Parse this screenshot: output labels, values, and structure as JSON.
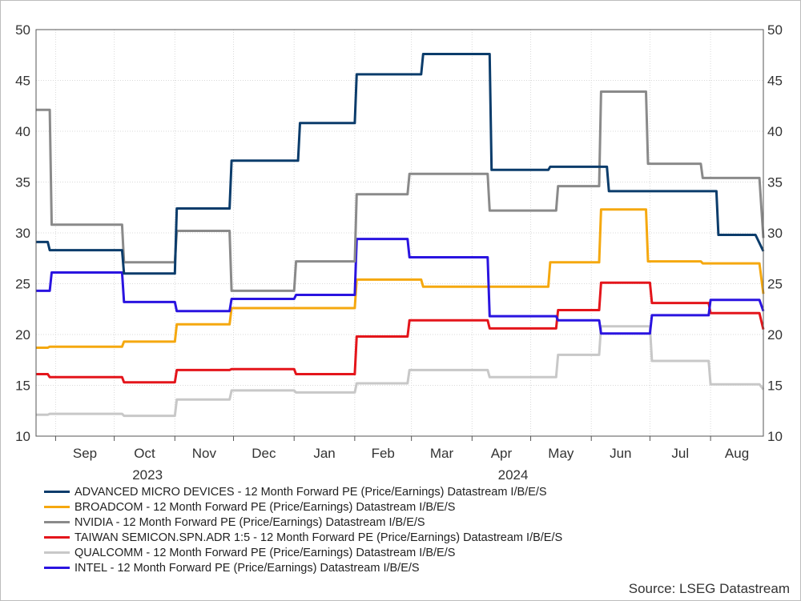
{
  "chart_data": {
    "type": "line",
    "ylim": [
      10,
      50
    ],
    "yticks": [
      10,
      15,
      20,
      25,
      30,
      35,
      40,
      45,
      50
    ],
    "x_month_labels": [
      "Sep",
      "Oct",
      "Nov",
      "Dec",
      "Jan",
      "Feb",
      "Mar",
      "Apr",
      "May",
      "Jun",
      "Jul",
      "Aug"
    ],
    "x_year_labels": [
      "2023",
      "2024"
    ],
    "grid": true,
    "legend_position": "bottom",
    "x_range": [
      "2023-08-22",
      "2024-08-28"
    ],
    "series": [
      {
        "name": "ADVANCED MICRO DEVICES - 12 Month Forward PE (Price/Earnings) Datastream I/B/E/S",
        "color": "#0b3c6b",
        "points": [
          [
            "2023-08-22",
            29.1
          ],
          [
            "2023-08-28",
            29.1
          ],
          [
            "2023-08-29",
            28.3
          ],
          [
            "2023-10-05",
            28.3
          ],
          [
            "2023-10-06",
            26.0
          ],
          [
            "2023-11-01",
            26.0
          ],
          [
            "2023-11-02",
            32.4
          ],
          [
            "2023-11-29",
            32.4
          ],
          [
            "2023-11-30",
            37.1
          ],
          [
            "2024-01-03",
            37.1
          ],
          [
            "2024-01-04",
            40.8
          ],
          [
            "2024-02-01",
            40.8
          ],
          [
            "2024-02-02",
            45.6
          ],
          [
            "2024-03-06",
            45.6
          ],
          [
            "2024-03-07",
            47.6
          ],
          [
            "2024-04-10",
            47.6
          ],
          [
            "2024-04-11",
            36.2
          ],
          [
            "2024-05-10",
            36.2
          ],
          [
            "2024-05-11",
            36.5
          ],
          [
            "2024-06-09",
            36.5
          ],
          [
            "2024-06-10",
            34.1
          ],
          [
            "2024-08-04",
            34.1
          ],
          [
            "2024-08-05",
            29.8
          ],
          [
            "2024-08-24",
            29.8
          ],
          [
            "2024-08-28",
            28.2
          ]
        ]
      },
      {
        "name": "BROADCOM - 12 Month Forward PE (Price/Earnings) Datastream I/B/E/S",
        "color": "#f5a80f",
        "points": [
          [
            "2023-08-22",
            18.7
          ],
          [
            "2023-08-28",
            18.7
          ],
          [
            "2023-08-29",
            18.8
          ],
          [
            "2023-10-05",
            18.8
          ],
          [
            "2023-10-06",
            19.3
          ],
          [
            "2023-11-01",
            19.3
          ],
          [
            "2023-11-02",
            21.0
          ],
          [
            "2023-11-29",
            21.0
          ],
          [
            "2023-11-30",
            22.6
          ],
          [
            "2024-02-01",
            22.6
          ],
          [
            "2024-02-02",
            25.4
          ],
          [
            "2024-03-06",
            25.4
          ],
          [
            "2024-03-07",
            24.7
          ],
          [
            "2024-05-10",
            24.7
          ],
          [
            "2024-05-11",
            27.1
          ],
          [
            "2024-06-05",
            27.1
          ],
          [
            "2024-06-06",
            32.3
          ],
          [
            "2024-06-29",
            32.3
          ],
          [
            "2024-06-30",
            27.2
          ],
          [
            "2024-07-27",
            27.2
          ],
          [
            "2024-07-28",
            27.0
          ],
          [
            "2024-08-26",
            27.0
          ],
          [
            "2024-08-28",
            24.0
          ]
        ]
      },
      {
        "name": "NVIDIA - 12 Month Forward PE (Price/Earnings) Datastream I/B/E/S",
        "color": "#8a8a8a",
        "points": [
          [
            "2023-08-22",
            42.1
          ],
          [
            "2023-08-29",
            42.1
          ],
          [
            "2023-08-30",
            30.8
          ],
          [
            "2023-10-05",
            30.8
          ],
          [
            "2023-10-06",
            27.1
          ],
          [
            "2023-11-01",
            27.1
          ],
          [
            "2023-11-02",
            30.2
          ],
          [
            "2023-11-29",
            30.2
          ],
          [
            "2023-11-30",
            24.3
          ],
          [
            "2024-01-01",
            24.3
          ],
          [
            "2024-01-02",
            27.2
          ],
          [
            "2024-02-01",
            27.2
          ],
          [
            "2024-02-02",
            33.8
          ],
          [
            "2024-02-28",
            33.8
          ],
          [
            "2024-02-29",
            35.8
          ],
          [
            "2024-04-09",
            35.8
          ],
          [
            "2024-04-10",
            32.2
          ],
          [
            "2024-05-14",
            32.2
          ],
          [
            "2024-05-15",
            34.6
          ],
          [
            "2024-06-05",
            34.6
          ],
          [
            "2024-06-06",
            43.9
          ],
          [
            "2024-06-29",
            43.9
          ],
          [
            "2024-06-30",
            36.8
          ],
          [
            "2024-07-27",
            36.8
          ],
          [
            "2024-07-28",
            35.4
          ],
          [
            "2024-08-26",
            35.4
          ],
          [
            "2024-08-28",
            29.5
          ]
        ]
      },
      {
        "name": "TAIWAN SEMICON.SPN.ADR 1:5 - 12 Month Forward PE (Price/Earnings) Datastream I/B/E/S",
        "color": "#e4151b",
        "points": [
          [
            "2023-08-22",
            16.1
          ],
          [
            "2023-08-28",
            16.1
          ],
          [
            "2023-08-29",
            15.8
          ],
          [
            "2023-10-05",
            15.8
          ],
          [
            "2023-10-06",
            15.3
          ],
          [
            "2023-11-01",
            15.3
          ],
          [
            "2023-11-02",
            16.5
          ],
          [
            "2023-11-29",
            16.5
          ],
          [
            "2023-11-30",
            16.6
          ],
          [
            "2024-01-01",
            16.6
          ],
          [
            "2024-01-02",
            16.1
          ],
          [
            "2024-02-01",
            16.1
          ],
          [
            "2024-02-02",
            19.8
          ],
          [
            "2024-02-28",
            19.8
          ],
          [
            "2024-02-29",
            21.4
          ],
          [
            "2024-04-09",
            21.4
          ],
          [
            "2024-04-10",
            20.6
          ],
          [
            "2024-05-14",
            20.6
          ],
          [
            "2024-05-15",
            22.4
          ],
          [
            "2024-06-05",
            22.4
          ],
          [
            "2024-06-06",
            25.1
          ],
          [
            "2024-07-01",
            25.1
          ],
          [
            "2024-07-02",
            23.1
          ],
          [
            "2024-07-31",
            23.1
          ],
          [
            "2024-08-01",
            22.1
          ],
          [
            "2024-08-26",
            22.1
          ],
          [
            "2024-08-28",
            20.5
          ]
        ]
      },
      {
        "name": "QUALCOMM - 12 Month Forward PE (Price/Earnings) Datastream I/B/E/S",
        "color": "#c8c8c8",
        "points": [
          [
            "2023-08-22",
            12.1
          ],
          [
            "2023-08-28",
            12.1
          ],
          [
            "2023-08-29",
            12.2
          ],
          [
            "2023-10-05",
            12.2
          ],
          [
            "2023-10-06",
            12.0
          ],
          [
            "2023-11-01",
            12.0
          ],
          [
            "2023-11-02",
            13.6
          ],
          [
            "2023-11-29",
            13.6
          ],
          [
            "2023-11-30",
            14.5
          ],
          [
            "2024-01-01",
            14.5
          ],
          [
            "2024-01-02",
            14.3
          ],
          [
            "2024-02-01",
            14.3
          ],
          [
            "2024-02-02",
            15.2
          ],
          [
            "2024-02-28",
            15.2
          ],
          [
            "2024-02-29",
            16.5
          ],
          [
            "2024-04-09",
            16.5
          ],
          [
            "2024-04-10",
            15.8
          ],
          [
            "2024-05-14",
            15.8
          ],
          [
            "2024-05-15",
            18.0
          ],
          [
            "2024-06-05",
            18.0
          ],
          [
            "2024-06-06",
            20.8
          ],
          [
            "2024-07-01",
            20.8
          ],
          [
            "2024-07-02",
            17.4
          ],
          [
            "2024-07-31",
            17.4
          ],
          [
            "2024-08-01",
            15.1
          ],
          [
            "2024-08-26",
            15.1
          ],
          [
            "2024-08-28",
            14.6
          ]
        ]
      },
      {
        "name": "INTEL - 12 Month Forward PE (Price/Earnings) Datastream I/B/E/S",
        "color": "#2a14e0",
        "points": [
          [
            "2023-08-22",
            24.3
          ],
          [
            "2023-08-29",
            24.3
          ],
          [
            "2023-08-30",
            26.1
          ],
          [
            "2023-10-05",
            26.1
          ],
          [
            "2023-10-06",
            23.2
          ],
          [
            "2023-11-01",
            23.2
          ],
          [
            "2023-11-02",
            22.3
          ],
          [
            "2023-11-29",
            22.3
          ],
          [
            "2023-11-30",
            23.5
          ],
          [
            "2024-01-01",
            23.5
          ],
          [
            "2024-01-02",
            23.9
          ],
          [
            "2024-02-01",
            23.9
          ],
          [
            "2024-02-02",
            29.4
          ],
          [
            "2024-02-28",
            29.4
          ],
          [
            "2024-02-29",
            27.6
          ],
          [
            "2024-04-09",
            27.6
          ],
          [
            "2024-04-10",
            21.8
          ],
          [
            "2024-05-14",
            21.8
          ],
          [
            "2024-05-15",
            21.4
          ],
          [
            "2024-06-05",
            21.4
          ],
          [
            "2024-06-06",
            20.1
          ],
          [
            "2024-07-01",
            20.1
          ],
          [
            "2024-07-02",
            21.9
          ],
          [
            "2024-07-31",
            21.9
          ],
          [
            "2024-08-01",
            23.4
          ],
          [
            "2024-08-26",
            23.4
          ],
          [
            "2024-08-28",
            22.3
          ]
        ]
      }
    ]
  },
  "source_text": "Source: LSEG Datastream"
}
